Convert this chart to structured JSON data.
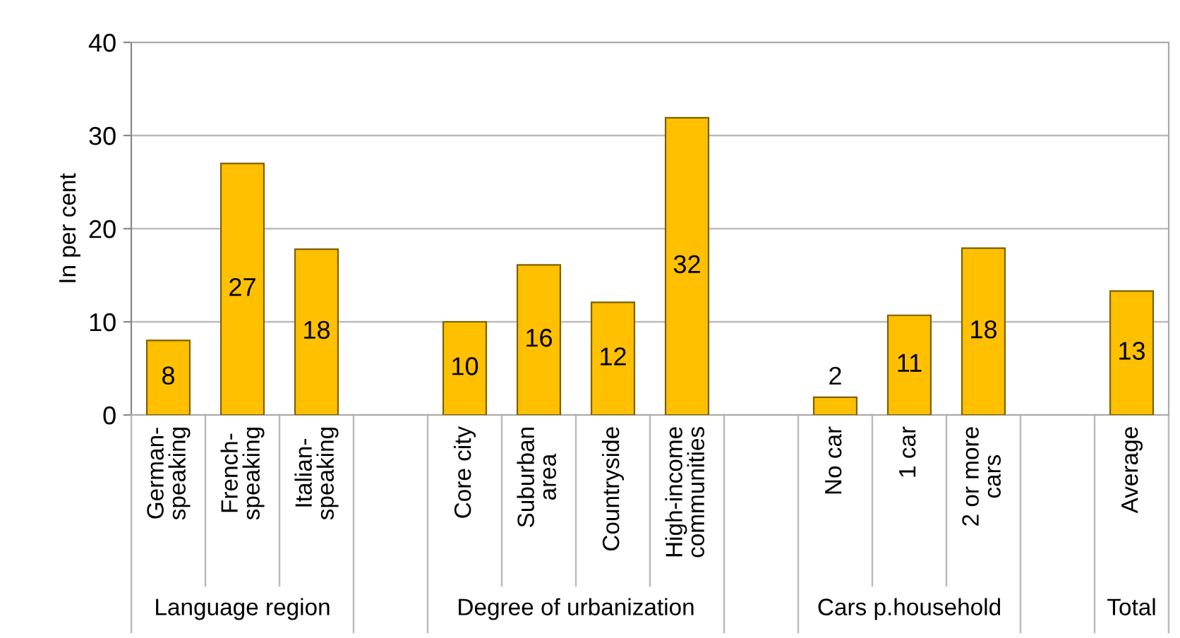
{
  "chart_data": {
    "type": "bar",
    "ylabel": "In per cent",
    "categories": [
      "German-\nspeaking",
      "French-\nspeaking",
      "Italian-\nspeaking",
      null,
      "Core city",
      "Suburban\narea",
      "Countryside",
      "High-income\ncommunities",
      null,
      "No car",
      "1 car",
      "2 or more\ncars",
      null,
      "Average"
    ],
    "values": [
      8,
      27,
      17.8,
      null,
      10,
      16.1,
      12.1,
      31.9,
      null,
      1.9,
      10.7,
      17.9,
      null,
      13.3
    ],
    "value_labels": [
      "8",
      "27",
      "18",
      null,
      "10",
      "16",
      "12",
      "32",
      null,
      "2",
      "11",
      "18",
      null,
      "13"
    ],
    "color": "#ffc000",
    "annotations": [
      "Language region",
      "Degree of urbanization",
      "Cars p.household",
      "Total"
    ],
    "ylim": [
      0,
      40
    ],
    "yticks": [
      0,
      10,
      20,
      30,
      40
    ],
    "grid": "y",
    "legend": false
  }
}
